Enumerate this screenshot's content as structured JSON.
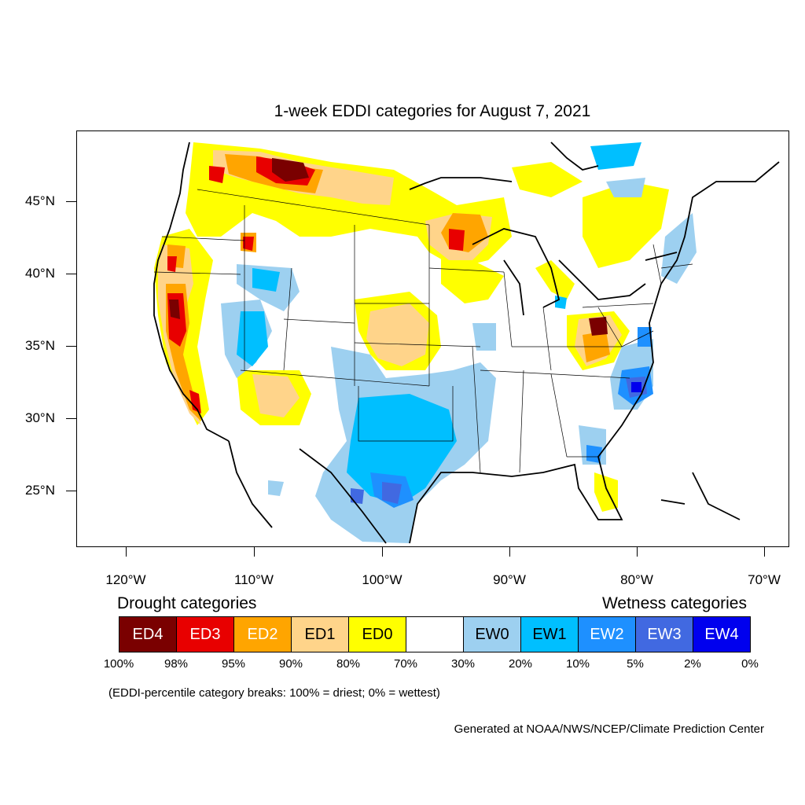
{
  "title": "1-week EDDI categories for August 7, 2021",
  "y_axis": {
    "labels": [
      "45°N",
      "40°N",
      "35°N",
      "30°N",
      "25°N"
    ]
  },
  "x_axis": {
    "labels": [
      "120°W",
      "110°W",
      "100°W",
      "90°W",
      "80°W",
      "70°W"
    ]
  },
  "legend": {
    "drought_heading": "Drought categories",
    "wetness_heading": "Wetness categories",
    "categories": [
      {
        "label": "ED4",
        "color": "#7a0000",
        "text_color": "#ffffff"
      },
      {
        "label": "ED3",
        "color": "#e80000",
        "text_color": "#ffffff"
      },
      {
        "label": "ED2",
        "color": "#ffa500",
        "text_color": "#ffffff"
      },
      {
        "label": "ED1",
        "color": "#ffd48a",
        "text_color": "#000000"
      },
      {
        "label": "ED0",
        "color": "#ffff00",
        "text_color": "#000000"
      },
      {
        "label": "",
        "color": "#ffffff",
        "text_color": "#000000"
      },
      {
        "label": "EW0",
        "color": "#9dd0f0",
        "text_color": "#000000"
      },
      {
        "label": "EW1",
        "color": "#00bfff",
        "text_color": "#000000"
      },
      {
        "label": "EW2",
        "color": "#1e90ff",
        "text_color": "#ffffff"
      },
      {
        "label": "EW3",
        "color": "#4169e1",
        "text_color": "#ffffff"
      },
      {
        "label": "EW4",
        "color": "#0000ee",
        "text_color": "#ffffff"
      }
    ],
    "breaks": [
      "100%",
      "98%",
      "95%",
      "90%",
      "80%",
      "70%",
      "30%",
      "20%",
      "10%",
      "5%",
      "2%",
      "0%"
    ]
  },
  "note": "(EDDI-percentile category breaks: 100% = driest; 0% = wettest)",
  "credit": "Generated at NOAA/NWS/NCEP/Climate Prediction Center"
}
